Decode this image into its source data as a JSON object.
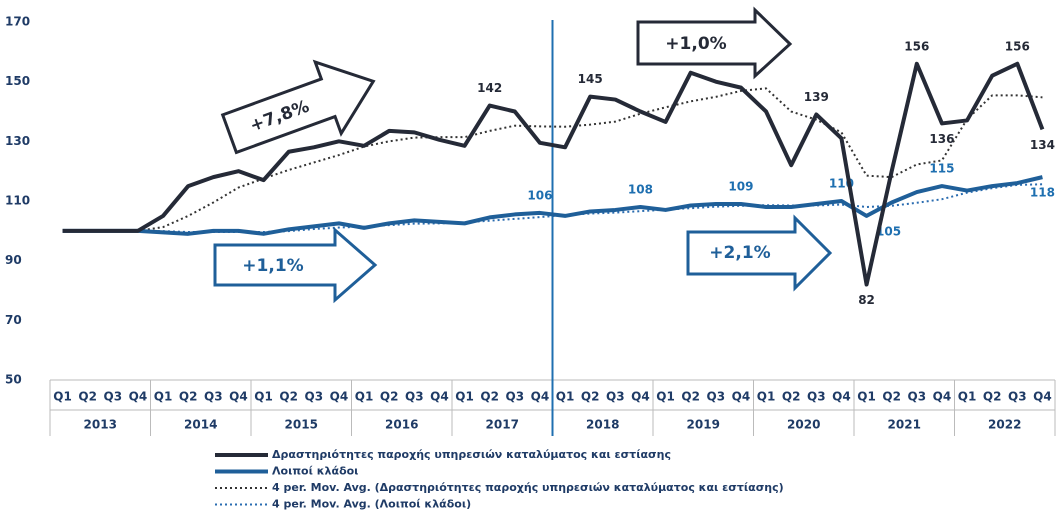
{
  "chart_data": {
    "type": "line",
    "categories": [
      "Q1",
      "Q2",
      "Q3",
      "Q4",
      "Q1",
      "Q2",
      "Q3",
      "Q4",
      "Q1",
      "Q2",
      "Q3",
      "Q4",
      "Q1",
      "Q2",
      "Q3",
      "Q4",
      "Q1",
      "Q2",
      "Q3",
      "Q4",
      "Q1",
      "Q2",
      "Q3",
      "Q4",
      "Q1",
      "Q2",
      "Q3",
      "Q4",
      "Q1",
      "Q2",
      "Q3",
      "Q4",
      "Q1",
      "Q2",
      "Q3",
      "Q4",
      "Q1",
      "Q2",
      "Q3",
      "Q4"
    ],
    "years": [
      "2013",
      "2014",
      "2015",
      "2016",
      "2017",
      "2018",
      "2019",
      "2020",
      "2021",
      "2022"
    ],
    "ylim": [
      50,
      170
    ],
    "yticks": [
      50,
      70,
      90,
      110,
      130,
      150,
      170
    ],
    "grid": false,
    "series": [
      {
        "name": "Δραστηριότητες παροχής υπηρεσιών καταλύματος και εστίασης",
        "color": "#252a37",
        "style": "solid",
        "values": [
          100,
          100,
          100,
          100,
          105,
          115,
          118,
          120,
          117,
          126.5,
          128,
          130,
          128.5,
          133.5,
          133,
          130.5,
          128.5,
          142,
          140,
          129.5,
          128,
          145,
          144,
          140,
          136.5,
          153,
          150,
          148,
          140,
          122,
          139,
          131,
          82,
          120,
          156,
          136,
          137,
          152,
          156,
          134
        ],
        "value_labels": [
          null,
          null,
          null,
          null,
          null,
          null,
          null,
          null,
          null,
          null,
          null,
          null,
          null,
          null,
          null,
          null,
          null,
          "142",
          null,
          null,
          null,
          "145",
          null,
          null,
          null,
          null,
          null,
          null,
          null,
          null,
          "139",
          null,
          "82",
          null,
          "156",
          "136",
          null,
          null,
          "156",
          "134"
        ]
      },
      {
        "name": "Λοιποί κλάδοι",
        "color": "#1f5f99",
        "style": "solid",
        "values": [
          100,
          100,
          100,
          100,
          99.5,
          99,
          100,
          100,
          99,
          100.5,
          101.5,
          102.5,
          101,
          102.5,
          103.5,
          103,
          102.5,
          104.5,
          105.5,
          106,
          105,
          106.5,
          107,
          108,
          107,
          108.5,
          109,
          109,
          108,
          108,
          109,
          110,
          105,
          109.5,
          113,
          115,
          113.5,
          115,
          116,
          118
        ],
        "value_labels": [
          null,
          null,
          null,
          null,
          null,
          null,
          null,
          null,
          null,
          null,
          null,
          null,
          null,
          null,
          null,
          null,
          null,
          null,
          null,
          "106",
          null,
          null,
          null,
          "108",
          null,
          null,
          null,
          "109",
          null,
          null,
          null,
          "110",
          "105",
          null,
          null,
          "115",
          null,
          null,
          null,
          "118"
        ]
      },
      {
        "name": "4 per. Mov. Avg. (Δραστηριότητες παροχής υπηρεσιών καταλύματος και εστίασης)",
        "color": "#333333",
        "style": "dotted",
        "values": [
          null,
          null,
          null,
          100,
          101.25,
          105,
          109.5,
          114.5,
          117.5,
          120.4,
          122.9,
          125.4,
          128.25,
          130,
          131.25,
          131.4,
          131.4,
          133.5,
          135.25,
          135,
          134.9,
          135.6,
          136.6,
          139.25,
          141.4,
          143.4,
          144.9,
          146.9,
          147.75,
          140,
          137.25,
          133,
          118.5,
          118,
          122.25,
          123.6,
          137.4,
          145.4,
          145.4,
          144.75
        ]
      },
      {
        "name": "4 per. Mov. Avg. (Λοιποί κλάδοι)",
        "color": "#2a6cb0",
        "style": "dotted",
        "values": [
          null,
          null,
          null,
          100,
          99.9,
          99.6,
          99.6,
          99.6,
          99.6,
          99.9,
          100.6,
          101.1,
          101.4,
          101.9,
          102.4,
          102.5,
          102.8,
          103.4,
          104,
          104.6,
          105.3,
          105.8,
          106.1,
          106.6,
          107.1,
          107.6,
          108.1,
          108.4,
          108.6,
          108.5,
          108.5,
          108.8,
          108,
          108.4,
          109.4,
          110.6,
          112.8,
          114.3,
          115.4,
          115.6
        ]
      }
    ],
    "annotations": [
      "+7,8%",
      "+1,0%",
      "+1,1%",
      "+2,1%"
    ]
  }
}
